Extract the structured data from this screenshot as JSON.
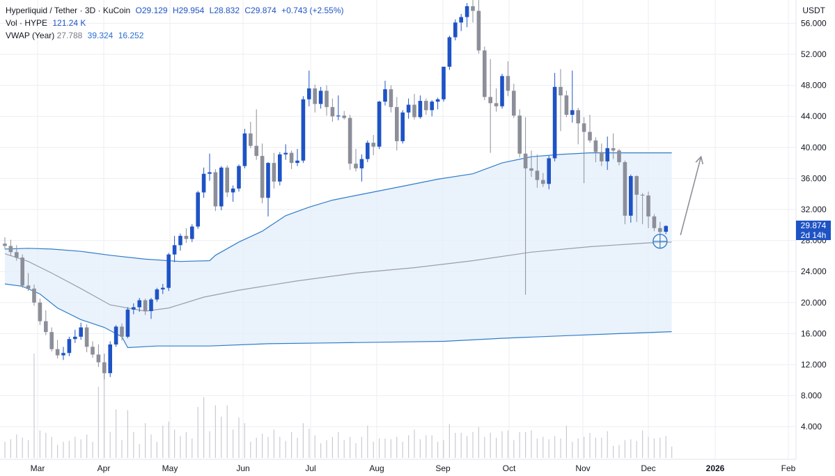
{
  "legend": {
    "symbol": "Hyperliquid / Tether · 3D · KuCoin",
    "open": "O29.129",
    "high": "H29.954",
    "low": "L28.832",
    "close": "C29.874",
    "change": "+0.743 (+2.55%)",
    "volume_label": "Vol · HYPE",
    "volume_value": "121.24 K",
    "vwap_label": "VWAP (Year)",
    "vwap_value_1": "27.788",
    "vwap_value_2": "39.324",
    "vwap_value_3": "16.252"
  },
  "price_axis_unit": "USDT",
  "price_tag": {
    "value": "29.874",
    "countdown": "2d 14h"
  },
  "colors": {
    "up": "#1e53c5",
    "down": "#8c8f99",
    "band_fill": "#e3eefb",
    "band_line": "#2f7cc8",
    "vwap_line": "#9a9da6",
    "volume": "#c9cbd1",
    "grid": "#eceef2"
  },
  "chart_data": {
    "type": "candlestick",
    "y_axis_ticks": [
      "4.000",
      "8.000",
      "12.000",
      "16.000",
      "20.000",
      "24.000",
      "28.000",
      "32.000",
      "36.000",
      "40.000",
      "44.000",
      "48.000",
      "52.000",
      "56.000"
    ],
    "x_axis_ticks": [
      "Mar",
      "Apr",
      "May",
      "Jun",
      "Jul",
      "Aug",
      "Sep",
      "Oct",
      "Nov",
      "Dec",
      "2026",
      "Feb"
    ],
    "ylim": [
      -0.2,
      59
    ],
    "candles": [
      [
        27.6,
        28.4,
        26.9,
        27.3
      ],
      [
        27.3,
        28.1,
        26.0,
        26.5
      ],
      [
        26.5,
        27.4,
        25.4,
        25.8
      ],
      [
        25.8,
        26.2,
        21.9,
        22.2
      ],
      [
        22.2,
        23.8,
        21.5,
        21.8
      ],
      [
        21.8,
        22.3,
        19.6,
        20.0
      ],
      [
        20.0,
        20.5,
        17.1,
        17.6
      ],
      [
        17.6,
        19.0,
        15.8,
        16.2
      ],
      [
        16.2,
        16.8,
        13.7,
        14.0
      ],
      [
        14.0,
        15.2,
        12.8,
        13.2
      ],
      [
        13.2,
        14.3,
        12.6,
        13.5
      ],
      [
        13.5,
        15.6,
        13.1,
        15.3
      ],
      [
        15.3,
        16.5,
        14.8,
        15.6
      ],
      [
        15.6,
        17.4,
        15.2,
        16.8
      ],
      [
        16.8,
        17.2,
        13.6,
        14.3
      ],
      [
        14.3,
        15.0,
        12.9,
        13.3
      ],
      [
        13.3,
        14.6,
        11.7,
        12.3
      ],
      [
        12.3,
        13.4,
        10.1,
        10.9
      ],
      [
        10.9,
        15.0,
        10.4,
        14.6
      ],
      [
        14.6,
        17.1,
        14.3,
        16.9
      ],
      [
        16.9,
        17.3,
        15.1,
        15.6
      ],
      [
        15.6,
        19.4,
        15.4,
        19.1
      ],
      [
        19.1,
        19.9,
        18.5,
        19.4
      ],
      [
        19.4,
        20.6,
        18.8,
        20.3
      ],
      [
        20.3,
        20.5,
        18.4,
        18.9
      ],
      [
        18.9,
        20.6,
        17.9,
        20.4
      ],
      [
        20.4,
        21.9,
        20.1,
        21.7
      ],
      [
        21.7,
        22.4,
        21.1,
        21.9
      ],
      [
        21.9,
        26.4,
        21.5,
        26.2
      ],
      [
        26.2,
        28.6,
        25.2,
        27.4
      ],
      [
        27.4,
        28.9,
        26.7,
        28.6
      ],
      [
        28.6,
        29.6,
        27.7,
        28.2
      ],
      [
        28.2,
        30.1,
        27.8,
        29.8
      ],
      [
        29.8,
        34.4,
        29.5,
        34.2
      ],
      [
        34.2,
        37.4,
        33.5,
        36.6
      ],
      [
        36.6,
        39.2,
        35.7,
        36.8
      ],
      [
        36.8,
        37.2,
        31.8,
        32.4
      ],
      [
        32.4,
        37.6,
        31.9,
        37.4
      ],
      [
        37.4,
        37.7,
        33.6,
        34.2
      ],
      [
        34.2,
        35.1,
        33.0,
        34.7
      ],
      [
        34.7,
        37.8,
        34.3,
        37.6
      ],
      [
        37.6,
        42.4,
        37.3,
        41.8
      ],
      [
        41.8,
        43.3,
        39.9,
        40.2
      ],
      [
        40.2,
        44.9,
        38.4,
        38.9
      ],
      [
        38.9,
        40.5,
        32.8,
        33.5
      ],
      [
        33.5,
        38.1,
        31.1,
        38.0
      ],
      [
        38.0,
        39.3,
        34.7,
        35.6
      ],
      [
        35.6,
        39.4,
        35.1,
        39.1
      ],
      [
        39.1,
        40.4,
        38.4,
        39.3
      ],
      [
        39.3,
        39.6,
        37.2,
        38.0
      ],
      [
        38.0,
        39.8,
        37.6,
        38.3
      ],
      [
        38.3,
        46.6,
        38.0,
        46.2
      ],
      [
        46.2,
        49.9,
        45.3,
        47.6
      ],
      [
        47.6,
        48.1,
        44.5,
        45.6
      ],
      [
        45.6,
        47.8,
        45.0,
        47.3
      ],
      [
        47.3,
        48.0,
        44.1,
        45.2
      ],
      [
        45.2,
        46.3,
        43.3,
        44.0
      ],
      [
        44.0,
        46.7,
        43.5,
        44.1
      ],
      [
        44.1,
        44.7,
        43.6,
        43.8
      ],
      [
        43.8,
        44.2,
        37.1,
        37.9
      ],
      [
        37.9,
        39.8,
        36.9,
        37.3
      ],
      [
        37.3,
        39.1,
        35.6,
        38.5
      ],
      [
        38.5,
        40.9,
        38.1,
        40.6
      ],
      [
        40.6,
        41.6,
        39.0,
        40.1
      ],
      [
        40.1,
        46.0,
        39.8,
        45.9
      ],
      [
        45.9,
        48.6,
        45.4,
        47.5
      ],
      [
        47.5,
        48.0,
        44.5,
        45.2
      ],
      [
        45.2,
        46.5,
        39.6,
        40.8
      ],
      [
        40.8,
        44.8,
        40.5,
        44.5
      ],
      [
        44.5,
        46.3,
        43.7,
        45.5
      ],
      [
        45.5,
        46.9,
        43.6,
        43.9
      ],
      [
        43.9,
        46.7,
        43.7,
        46.0
      ],
      [
        46.0,
        46.3,
        44.2,
        44.8
      ],
      [
        44.8,
        46.1,
        44.0,
        45.9
      ],
      [
        45.9,
        46.4,
        44.9,
        46.2
      ],
      [
        46.2,
        50.4,
        45.9,
        50.4
      ],
      [
        50.4,
        54.4,
        50.0,
        54.2
      ],
      [
        54.2,
        56.5,
        53.8,
        56.1
      ],
      [
        56.1,
        57.2,
        55.0,
        56.8
      ],
      [
        56.8,
        58.6,
        55.5,
        58.2
      ],
      [
        58.2,
        59.3,
        56.1,
        57.6
      ],
      [
        57.6,
        59.2,
        52.1,
        52.5
      ],
      [
        52.5,
        53.0,
        46.1,
        46.5
      ],
      [
        46.5,
        51.4,
        39.3,
        45.7
      ],
      [
        45.7,
        47.6,
        44.6,
        45.3
      ],
      [
        45.3,
        49.5,
        45.0,
        49.2
      ],
      [
        49.2,
        51.1,
        46.6,
        47.3
      ],
      [
        47.3,
        48.2,
        43.8,
        44.1
      ],
      [
        44.1,
        44.9,
        38.7,
        39.2
      ],
      [
        39.2,
        43.9,
        21.0,
        37.3
      ],
      [
        37.3,
        39.6,
        36.2,
        37.0
      ],
      [
        37.0,
        39.1,
        34.8,
        35.8
      ],
      [
        35.8,
        36.7,
        34.9,
        35.3
      ],
      [
        35.3,
        38.9,
        34.6,
        38.6
      ],
      [
        38.6,
        49.6,
        38.2,
        47.8
      ],
      [
        47.8,
        50.1,
        42.1,
        46.7
      ],
      [
        46.7,
        47.3,
        43.9,
        44.2
      ],
      [
        44.2,
        49.9,
        43.2,
        44.8
      ],
      [
        44.8,
        45.1,
        40.4,
        43.1
      ],
      [
        43.1,
        43.9,
        35.4,
        42.0
      ],
      [
        42.0,
        44.2,
        40.6,
        40.9
      ],
      [
        40.9,
        41.3,
        38.1,
        39.4
      ],
      [
        39.4,
        40.5,
        37.6,
        38.2
      ],
      [
        38.2,
        41.4,
        37.1,
        39.9
      ],
      [
        39.9,
        41.8,
        38.5,
        39.6
      ],
      [
        39.6,
        39.8,
        37.7,
        38.1
      ],
      [
        38.1,
        38.3,
        30.1,
        31.2
      ],
      [
        31.2,
        36.5,
        30.3,
        36.3
      ],
      [
        36.3,
        36.4,
        30.4,
        33.9
      ],
      [
        33.9,
        34.1,
        30.1,
        33.8
      ],
      [
        33.8,
        34.3,
        29.6,
        31.1
      ],
      [
        31.1,
        31.4,
        29.2,
        29.6
      ],
      [
        29.6,
        30.4,
        28.7,
        29.1
      ],
      [
        29.129,
        29.954,
        28.832,
        29.874
      ]
    ],
    "vwap": [
      [
        0,
        26.3
      ],
      [
        4,
        25.3
      ],
      [
        8,
        23.8
      ],
      [
        13,
        21.8
      ],
      [
        18,
        19.7
      ],
      [
        24,
        18.9
      ],
      [
        28,
        19.3
      ],
      [
        34,
        20.7
      ],
      [
        40,
        21.6
      ],
      [
        50,
        22.8
      ],
      [
        60,
        23.8
      ],
      [
        70,
        24.5
      ],
      [
        80,
        25.4
      ],
      [
        90,
        26.5
      ],
      [
        100,
        27.2
      ],
      [
        110,
        27.7
      ],
      [
        114,
        27.8
      ]
    ],
    "vwap_upper": [
      [
        0,
        26.9
      ],
      [
        4,
        27.0
      ],
      [
        8,
        26.9
      ],
      [
        13,
        26.6
      ],
      [
        18,
        26.1
      ],
      [
        24,
        25.6
      ],
      [
        30,
        25.3
      ],
      [
        35,
        25.4
      ],
      [
        36,
        26.1
      ],
      [
        40,
        27.8
      ],
      [
        44,
        29.2
      ],
      [
        48,
        31.2
      ],
      [
        52,
        32.3
      ],
      [
        56,
        33.2
      ],
      [
        60,
        33.8
      ],
      [
        68,
        35.0
      ],
      [
        74,
        35.9
      ],
      [
        80,
        36.6
      ],
      [
        85,
        38.0
      ],
      [
        90,
        38.8
      ],
      [
        95,
        39.1
      ],
      [
        100,
        39.3
      ],
      [
        108,
        39.3
      ],
      [
        114,
        39.3
      ]
    ],
    "vwap_lower": [
      [
        0,
        22.4
      ],
      [
        3,
        22.1
      ],
      [
        6,
        21.1
      ],
      [
        9,
        19.3
      ],
      [
        13,
        17.8
      ],
      [
        17,
        16.8
      ],
      [
        20,
        15.6
      ],
      [
        21,
        14.2
      ],
      [
        26,
        14.4
      ],
      [
        35,
        14.4
      ],
      [
        45,
        14.7
      ],
      [
        55,
        14.8
      ],
      [
        65,
        14.9
      ],
      [
        75,
        15.0
      ],
      [
        85,
        15.4
      ],
      [
        95,
        15.7
      ],
      [
        105,
        16.0
      ],
      [
        114,
        16.25
      ]
    ],
    "volume": [
      2.0,
      2.3,
      2.9,
      2.5,
      2.2,
      12.9,
      3.4,
      3.1,
      2.6,
      1.6,
      2.0,
      2.1,
      2.6,
      2.3,
      2.9,
      2.0,
      8.8,
      12.9,
      3.2,
      6.0,
      2.2,
      5.9,
      3.2,
      1.7,
      4.3,
      2.9,
      2.0,
      4.0,
      4.5,
      3.5,
      2.7,
      3.2,
      2.4,
      6.3,
      7.5,
      3.3,
      6.5,
      5.1,
      6.5,
      3.5,
      5.0,
      4.3,
      2.0,
      2.5,
      3.0,
      2.6,
      3.5,
      2.6,
      2.1,
      3.2,
      2.5,
      4.3,
      3.6,
      2.8,
      1.8,
      2.2,
      2.6,
      3.2,
      2.2,
      2.6,
      1.8,
      2.6,
      4.0,
      2.0,
      2.4,
      2.4,
      2.3,
      2.6,
      2.0,
      2.8,
      3.5,
      2.3,
      2.8,
      2.8,
      2.0,
      2.2,
      4.2,
      3.1,
      3.1,
      2.7,
      3.2,
      3.8,
      2.6,
      3.1,
      2.5,
      3.3,
      3.4,
      2.2,
      3.2,
      3.2,
      3.4,
      2.4,
      2.6,
      2.3,
      2.7,
      2.4,
      4.0,
      2.0,
      2.4,
      2.6,
      3.1,
      2.5,
      2.5,
      3.3,
      1.5,
      1.6,
      2.2,
      2.3,
      2.1,
      3.4,
      2.6,
      2.4,
      2.5,
      2.7,
      1.4
    ],
    "volume_scale_max": 12.9,
    "annotations": [
      {
        "type": "arrow",
        "from": [
          115.5,
          28.7
        ],
        "to": [
          119,
          38.8
        ]
      },
      {
        "type": "circle",
        "at": [
          112,
          27.9
        ]
      }
    ]
  }
}
